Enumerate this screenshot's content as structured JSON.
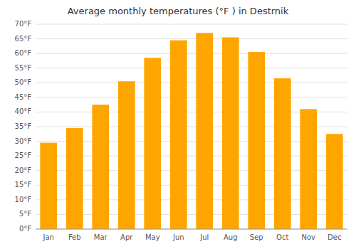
{
  "chart_data": {
    "type": "bar",
    "title": "Average monthly temperatures (°F ) in Destrnik",
    "categories": [
      "Jan",
      "Feb",
      "Mar",
      "Apr",
      "May",
      "Jun",
      "Jul",
      "Aug",
      "Sep",
      "Oct",
      "Nov",
      "Dec"
    ],
    "values": [
      29.5,
      34.5,
      42.5,
      50.5,
      58.5,
      64.5,
      67.0,
      65.5,
      60.5,
      51.5,
      41.0,
      32.5
    ],
    "color": "#FFA500",
    "ylim": [
      0,
      70
    ],
    "yticks": [
      {
        "value": 0,
        "label": "0°F"
      },
      {
        "value": 5,
        "label": "5°F"
      },
      {
        "value": 10,
        "label": "10°F"
      },
      {
        "value": 15,
        "label": "15°F"
      },
      {
        "value": 20,
        "label": "20°F"
      },
      {
        "value": 25,
        "label": "25°F"
      },
      {
        "value": 30,
        "label": "30°F"
      },
      {
        "value": 35,
        "label": "35°F"
      },
      {
        "value": 40,
        "label": "40°F"
      },
      {
        "value": 45,
        "label": "45°F"
      },
      {
        "value": 50,
        "label": "50°F"
      },
      {
        "value": 55,
        "label": "55°F"
      },
      {
        "value": 60,
        "label": "60°F"
      },
      {
        "value": 65,
        "label": "65°F"
      },
      {
        "value": 70,
        "label": "70°F"
      }
    ],
    "grid": true
  }
}
